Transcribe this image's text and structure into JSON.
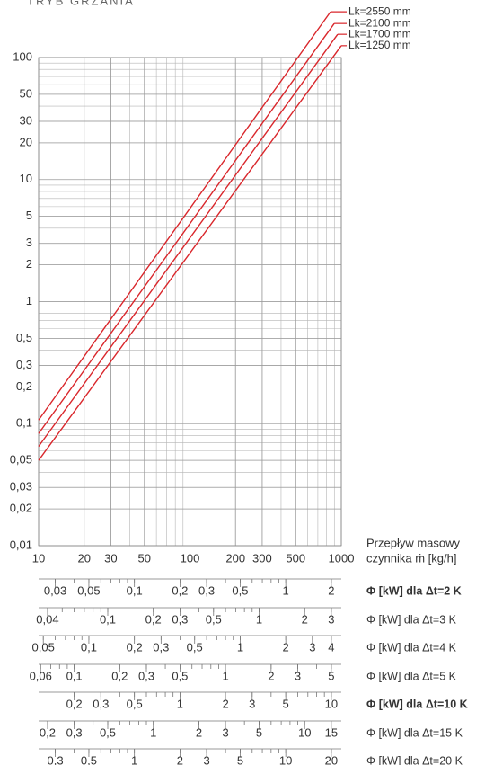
{
  "chart_data": {
    "type": "line",
    "title": "TRYB GRZANIA",
    "x_label": [
      "Przepływ masowy",
      "czynnika ṁ [kg/h]"
    ],
    "log_x": true,
    "log_y": true,
    "grid": true,
    "minor_grid": true,
    "xlim": [
      10,
      1000
    ],
    "xticks": [
      10,
      20,
      30,
      50,
      100,
      200,
      300,
      500,
      1000
    ],
    "ylim": [
      0.01,
      100
    ],
    "yticks": [
      100,
      50,
      30,
      20,
      10,
      5,
      3,
      2,
      1,
      {
        "value": 0.5,
        "label": "0,5"
      },
      {
        "value": 0.3,
        "label": "0,3"
      },
      {
        "value": 0.2,
        "label": "0,2"
      },
      {
        "value": 0.1,
        "label": "0,1"
      },
      {
        "value": 0.05,
        "label": "0,05"
      },
      {
        "value": 0.03,
        "label": "0,03"
      },
      {
        "value": 0.02,
        "label": "0,02"
      },
      {
        "value": 0.01,
        "label": "0,01"
      }
    ],
    "series": [
      {
        "name": "Lk=2550 mm",
        "color": "#d9262b",
        "x": [
          10,
          849
        ],
        "values": [
          0.107,
          237
        ]
      },
      {
        "name": "Lk=2100 mm",
        "color": "#d9262b",
        "x": [
          10,
          898
        ],
        "values": [
          0.083,
          190
        ]
      },
      {
        "name": "Lk=1700 mm",
        "color": "#d9262b",
        "x": [
          10,
          946
        ],
        "values": [
          0.065,
          155
        ]
      },
      {
        "name": "Lk=1250 mm",
        "color": "#d9262b",
        "x": [
          10,
          1000
        ],
        "values": [
          0.05,
          125
        ]
      }
    ],
    "scales": [
      {
        "label": "Φ [kW] dla Δt=2 K",
        "bold": true,
        "xlim": [
          0.02328,
          2.328
        ],
        "ticks": [
          {
            "value": 0.03,
            "label": "0,03"
          },
          {
            "value": 0.05,
            "label": "0,05"
          },
          {
            "value": 0.1,
            "label": "0,1"
          },
          {
            "value": 0.2,
            "label": "0,2"
          },
          {
            "value": 0.3,
            "label": "0,3"
          },
          {
            "value": 0.5,
            "label": "0,5"
          },
          1,
          2
        ]
      },
      {
        "label": "Φ [kW] dla Δt=3 K",
        "bold": false,
        "xlim": [
          0.03492,
          3.492
        ],
        "ticks": [
          {
            "value": 0.04,
            "label": "0,04"
          },
          {
            "value": 0.1,
            "label": "0,1"
          },
          {
            "value": 0.2,
            "label": "0,2"
          },
          {
            "value": 0.3,
            "label": "0,3"
          },
          {
            "value": 0.5,
            "label": "0,5"
          },
          1,
          2,
          3
        ]
      },
      {
        "label": "Φ [kW] dla Δt=4 K",
        "bold": false,
        "xlim": [
          0.04656,
          4.656
        ],
        "ticks": [
          {
            "value": 0.05,
            "label": "0,05"
          },
          {
            "value": 0.1,
            "label": "0,1"
          },
          {
            "value": 0.2,
            "label": "0,2"
          },
          {
            "value": 0.3,
            "label": "0,3"
          },
          {
            "value": 0.5,
            "label": "0,5"
          },
          1,
          2,
          3,
          4
        ]
      },
      {
        "label": "Φ [kW] dla Δt=5 K",
        "bold": false,
        "xlim": [
          0.0582,
          5.82
        ],
        "ticks": [
          {
            "value": 0.06,
            "label": "0,06"
          },
          {
            "value": 0.1,
            "label": "0,1"
          },
          {
            "value": 0.2,
            "label": "0,2"
          },
          {
            "value": 0.3,
            "label": "0,3"
          },
          {
            "value": 0.5,
            "label": "0,5"
          },
          1,
          2,
          3,
          5
        ]
      },
      {
        "label": "Φ [kW] dla Δt=10 K",
        "bold": true,
        "xlim": [
          0.1164,
          11.64
        ],
        "ticks": [
          {
            "value": 0.2,
            "label": "0,2"
          },
          {
            "value": 0.3,
            "label": "0,3"
          },
          {
            "value": 0.5,
            "label": "0,5"
          },
          1,
          2,
          3,
          5,
          10
        ]
      },
      {
        "label": "Φ [kW] dla Δt=15 K",
        "bold": false,
        "xlim": [
          0.1746,
          17.46
        ],
        "ticks": [
          {
            "value": 0.2,
            "label": "0,2"
          },
          {
            "value": 0.3,
            "label": "0,3"
          },
          {
            "value": 0.5,
            "label": "0,5"
          },
          1,
          2,
          3,
          5,
          10,
          15
        ]
      },
      {
        "label": "Φ [kW] dla Δt=20 K",
        "bold": false,
        "xlim": [
          0.2328,
          23.28
        ],
        "ticks": [
          {
            "value": 0.3,
            "label": "0,3"
          },
          {
            "value": 0.5,
            "label": "0,5"
          },
          1,
          2,
          3,
          5,
          10,
          20
        ]
      }
    ]
  }
}
